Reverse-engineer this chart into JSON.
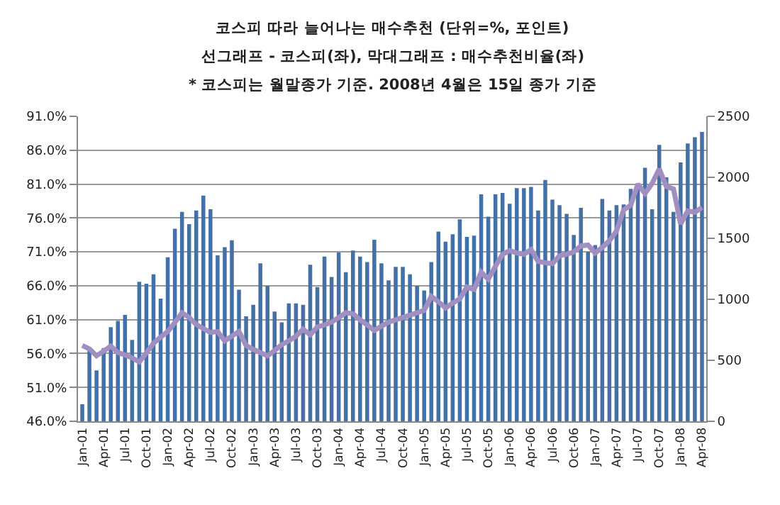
{
  "chart_data": {
    "type": "bar",
    "title": "코스피 따라 늘어나는 매수추천 (단위=%, 포인트)",
    "subtitle": "선그래프 - 코스피(좌), 막대그래프 : 매수추천비율(좌)",
    "annotations": [
      "* 코스피는 월말종가 기준. 2008년 4월은 15일 종가 기준"
    ],
    "categories": [
      "Jan-01",
      null,
      null,
      "Apr-01",
      null,
      null,
      "Jul-01",
      null,
      null,
      "Oct-01",
      null,
      null,
      "Jan-02",
      null,
      null,
      "Apr-02",
      null,
      null,
      "Jul-02",
      null,
      null,
      "Oct-02",
      null,
      null,
      "Jan-03",
      null,
      null,
      "Apr-03",
      null,
      null,
      "Jul-03",
      null,
      null,
      "Oct-03",
      null,
      null,
      "Jan-04",
      null,
      null,
      "Apr-04",
      null,
      null,
      "Jul-04",
      null,
      null,
      "Oct-04",
      null,
      null,
      "Jan-05",
      null,
      null,
      "Apr-05",
      null,
      null,
      "Jul-05",
      null,
      null,
      "Oct-05",
      null,
      null,
      "Jan-06",
      null,
      null,
      "Apr-06",
      null,
      null,
      "Jul-06",
      null,
      null,
      "Oct-06",
      null,
      null,
      "Jan-07",
      null,
      null,
      "Apr-07",
      null,
      null,
      "Jul-07",
      null,
      null,
      "Oct-07",
      null,
      null,
      "Jan-08",
      null,
      null,
      "Apr-08"
    ],
    "series": [
      {
        "color": "#4470a8",
        "values": [
          48.5,
          56.4,
          53.5,
          56.8,
          59.9,
          60.8,
          61.7,
          58.0,
          66.6,
          66.3,
          67.7,
          64.1,
          70.2,
          74.4,
          76.9,
          75.1,
          77.1,
          79.3,
          77.3,
          70.5,
          71.7,
          72.7,
          65.4,
          61.5,
          63.2,
          69.3,
          66.0,
          62.2,
          60.6,
          63.4,
          63.4,
          63.2,
          69.1,
          65.8,
          70.3,
          67.3,
          70.9,
          68.0,
          71.2,
          70.3,
          69.5,
          72.8,
          69.3,
          66.8,
          68.8,
          68.8,
          67.7,
          66.0,
          65.3,
          69.5,
          74.0,
          72.5,
          73.6,
          75.8,
          73.2,
          73.4,
          79.5,
          76.2,
          79.5,
          79.7,
          78.1,
          80.4,
          80.4,
          80.6,
          77.1,
          81.6,
          78.7,
          77.9,
          76.6,
          73.5,
          77.5,
          71.0,
          72.0,
          78.8,
          77.1,
          77.9,
          78.0,
          80.3,
          81.1,
          83.4,
          77.3,
          86.8,
          82.0,
          76.9,
          84.2,
          87.0,
          87.9,
          88.7
        ]
      },
      {
        "type": "line",
        "axis": "y2",
        "color": "#a08fc0",
        "values": [
          621,
          594,
          537,
          575,
          617,
          564,
          544,
          520,
          487,
          560,
          640,
          690,
          736,
          810,
          890,
          851,
          794,
          760,
          728,
          736,
          659,
          698,
          736,
          621,
          590,
          564,
          537,
          580,
          629,
          660,
          698,
          755,
          709,
          774,
          790,
          813,
          850,
          890,
          882,
          832,
          790,
          744,
          780,
          813,
          832,
          851,
          870,
          890,
          909,
          1024,
          980,
          928,
          970,
          1004,
          1100,
          1081,
          1223,
          1166,
          1270,
          1369,
          1399,
          1380,
          1369,
          1407,
          1311,
          1300,
          1292,
          1357,
          1370,
          1388,
          1438,
          1445,
          1380,
          1426,
          1480,
          1560,
          1733,
          1771,
          1944,
          1867,
          1950,
          2070,
          1925,
          1905,
          1618,
          1725,
          1714,
          1752
        ]
      }
    ],
    "ylim": [
      46,
      91
    ],
    "yticks": [
      {
        "value": 46,
        "label": "46.0%"
      },
      {
        "value": 51,
        "label": "51.0%"
      },
      {
        "value": 56,
        "label": "56.0%"
      },
      {
        "value": 61,
        "label": "61.0%"
      },
      {
        "value": 66,
        "label": "66.0%"
      },
      {
        "value": 71,
        "label": "71.0%"
      },
      {
        "value": 76,
        "label": "76.0%"
      },
      {
        "value": 81,
        "label": "81.0%"
      },
      {
        "value": 86,
        "label": "86.0%"
      },
      {
        "value": 91,
        "label": "91.0%"
      }
    ],
    "y2lim": [
      0,
      2500
    ],
    "y2ticks": [
      0,
      500,
      1000,
      1500,
      2000,
      2500
    ],
    "grid": "y",
    "line_style": "solid",
    "marker": "none"
  }
}
